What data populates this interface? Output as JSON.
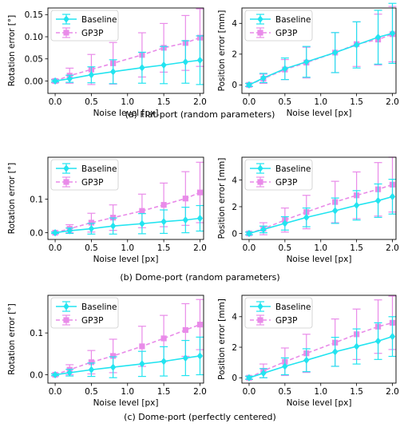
{
  "captions": [
    "(a) Flat-port (random parameters)",
    "(b) Dome-port (random parameters)",
    "(c) Dome-port (perfectly centered)"
  ],
  "colors": {
    "baseline": "#22e4f0",
    "gp3p": "#e98be9"
  },
  "chart_data": [
    {
      "id": "a-rotation",
      "type": "line",
      "row": "a",
      "col": "left",
      "xlabel": "Noise level [px]",
      "ylabel": "Rotation error [°]",
      "xlim": [
        -0.1,
        2.05
      ],
      "ylim": [
        -0.028,
        0.165
      ],
      "xticks": [
        0.0,
        0.5,
        1.0,
        1.5,
        2.0
      ],
      "xtick_labels": [
        "0.0",
        "0.5",
        "1.0",
        "1.5",
        "2.0"
      ],
      "yticks": [
        0.0,
        0.05,
        0.1,
        0.15
      ],
      "ytick_labels": [
        "0.00",
        "0.05",
        "0.10",
        "0.15"
      ],
      "legend": "top-left",
      "x": [
        0.0,
        0.2,
        0.5,
        0.8,
        1.2,
        1.5,
        1.8,
        2.0
      ],
      "series": [
        {
          "name": "Baseline",
          "marker": "diamond",
          "dash": "solid",
          "values": [
            0.0,
            0.005,
            0.014,
            0.021,
            0.03,
            0.036,
            0.043,
            0.047
          ],
          "errors": [
            0.002,
            0.008,
            0.018,
            0.027,
            0.035,
            0.042,
            0.048,
            0.055
          ]
        },
        {
          "name": "GP3P",
          "marker": "square",
          "dash": "dashed",
          "values": [
            0.0,
            0.012,
            0.026,
            0.04,
            0.059,
            0.075,
            0.086,
            0.098
          ],
          "errors": [
            0.004,
            0.017,
            0.034,
            0.047,
            0.05,
            0.055,
            0.062,
            0.065
          ]
        }
      ]
    },
    {
      "id": "a-position",
      "type": "line",
      "row": "a",
      "col": "right",
      "xlabel": "Noise level [px]",
      "ylabel": "Position error [mm]",
      "xlim": [
        -0.1,
        2.05
      ],
      "ylim": [
        -0.55,
        5.0
      ],
      "xticks": [
        0.0,
        0.5,
        1.0,
        1.5,
        2.0
      ],
      "xtick_labels": [
        "0.0",
        "0.5",
        "1.0",
        "1.5",
        "2.0"
      ],
      "yticks": [
        0,
        2,
        4
      ],
      "ytick_labels": [
        "0",
        "2",
        "4"
      ],
      "legend": "top-left",
      "x": [
        0.0,
        0.2,
        0.5,
        0.8,
        1.2,
        1.5,
        1.8,
        2.0
      ],
      "series": [
        {
          "name": "Baseline",
          "marker": "diamond",
          "dash": "solid",
          "values": [
            0.0,
            0.45,
            1.05,
            1.5,
            2.1,
            2.6,
            3.1,
            3.35
          ],
          "errors": [
            0.1,
            0.3,
            0.7,
            1.0,
            1.3,
            1.5,
            1.75,
            1.95
          ]
        },
        {
          "name": "GP3P",
          "marker": "square",
          "dash": "dashed",
          "values": [
            0.0,
            0.4,
            1.0,
            1.45,
            2.1,
            2.65,
            2.95,
            3.3
          ],
          "errors": [
            0.1,
            0.3,
            0.65,
            1.0,
            1.3,
            1.45,
            1.65,
            1.8
          ]
        }
      ]
    },
    {
      "id": "b-rotation",
      "type": "line",
      "row": "b",
      "col": "left",
      "xlabel": "Noise level [px]",
      "ylabel": "Rotation error [°]",
      "xlim": [
        -0.1,
        2.05
      ],
      "ylim": [
        -0.02,
        0.225
      ],
      "xticks": [
        0.0,
        0.5,
        1.0,
        1.5,
        2.0
      ],
      "xtick_labels": [
        "0.0",
        "0.5",
        "1.0",
        "1.5",
        "2.0"
      ],
      "yticks": [
        0.0,
        0.1
      ],
      "ytick_labels": [
        "0.0",
        "0.1"
      ],
      "legend": "top-left",
      "x": [
        0.0,
        0.2,
        0.5,
        0.8,
        1.2,
        1.5,
        1.8,
        2.0
      ],
      "series": [
        {
          "name": "Baseline",
          "marker": "diamond",
          "dash": "solid",
          "values": [
            0.0,
            0.006,
            0.012,
            0.02,
            0.027,
            0.033,
            0.038,
            0.043
          ],
          "errors": [
            0.002,
            0.008,
            0.016,
            0.024,
            0.03,
            0.035,
            0.038,
            0.038
          ]
        },
        {
          "name": "GP3P",
          "marker": "square",
          "dash": "dashed",
          "values": [
            0.0,
            0.012,
            0.03,
            0.045,
            0.065,
            0.083,
            0.102,
            0.12
          ],
          "errors": [
            0.003,
            0.012,
            0.028,
            0.038,
            0.05,
            0.065,
            0.08,
            0.09
          ]
        }
      ]
    },
    {
      "id": "b-position",
      "type": "line",
      "row": "b",
      "col": "right",
      "xlabel": "Noise level [px]",
      "ylabel": "Position error [mm]",
      "xlim": [
        -0.1,
        2.05
      ],
      "ylim": [
        -0.45,
        5.7
      ],
      "xticks": [
        0.0,
        0.5,
        1.0,
        1.5,
        2.0
      ],
      "xtick_labels": [
        "0.0",
        "0.5",
        "1.0",
        "1.5",
        "2.0"
      ],
      "yticks": [
        0,
        2,
        4
      ],
      "ytick_labels": [
        "0",
        "2",
        "4"
      ],
      "legend": "top-left",
      "x": [
        0.0,
        0.2,
        0.5,
        0.8,
        1.2,
        1.5,
        1.8,
        2.0
      ],
      "series": [
        {
          "name": "Baseline",
          "marker": "diamond",
          "dash": "solid",
          "values": [
            0.0,
            0.3,
            0.75,
            1.2,
            1.7,
            2.1,
            2.45,
            2.75
          ],
          "errors": [
            0.1,
            0.25,
            0.5,
            0.7,
            0.95,
            1.1,
            1.25,
            1.3
          ]
        },
        {
          "name": "GP3P",
          "marker": "square",
          "dash": "dashed",
          "values": [
            0.0,
            0.35,
            1.0,
            1.6,
            2.35,
            2.85,
            3.3,
            3.65
          ],
          "errors": [
            0.1,
            0.45,
            0.9,
            1.25,
            1.55,
            1.75,
            2.0,
            2.05
          ]
        }
      ]
    },
    {
      "id": "c-rotation",
      "type": "line",
      "row": "c",
      "col": "left",
      "xlabel": "Noise level [px]",
      "ylabel": "Rotation error [°]",
      "xlim": [
        -0.1,
        2.05
      ],
      "ylim": [
        -0.02,
        0.19
      ],
      "xticks": [
        0.0,
        0.5,
        1.0,
        1.5,
        2.0
      ],
      "xtick_labels": [
        "0.0",
        "0.5",
        "1.0",
        "1.5",
        "2.0"
      ],
      "yticks": [
        0.0,
        0.1
      ],
      "ytick_labels": [
        "0.0",
        "0.1"
      ],
      "legend": "top-left",
      "x": [
        0.0,
        0.2,
        0.5,
        0.8,
        1.2,
        1.5,
        1.8,
        2.0
      ],
      "series": [
        {
          "name": "Baseline",
          "marker": "diamond",
          "dash": "solid",
          "values": [
            0.0,
            0.005,
            0.012,
            0.018,
            0.026,
            0.032,
            0.04,
            0.045
          ],
          "errors": [
            0.002,
            0.008,
            0.016,
            0.025,
            0.03,
            0.035,
            0.042,
            0.045
          ]
        },
        {
          "name": "GP3P",
          "marker": "square",
          "dash": "dashed",
          "values": [
            0.0,
            0.012,
            0.03,
            0.045,
            0.068,
            0.087,
            0.107,
            0.12
          ],
          "errors": [
            0.003,
            0.012,
            0.028,
            0.04,
            0.048,
            0.055,
            0.063,
            0.06
          ]
        }
      ]
    },
    {
      "id": "c-position",
      "type": "line",
      "row": "c",
      "col": "right",
      "xlabel": "Noise level [px]",
      "ylabel": "Position error [mm]",
      "xlim": [
        -0.1,
        2.05
      ],
      "ylim": [
        -0.35,
        5.4
      ],
      "xticks": [
        0.0,
        0.5,
        1.0,
        1.5,
        2.0
      ],
      "xtick_labels": [
        "0.0",
        "0.5",
        "1.0",
        "1.5",
        "2.0"
      ],
      "yticks": [
        0,
        2,
        4
      ],
      "ytick_labels": [
        "0",
        "2",
        "4"
      ],
      "legend": "top-left",
      "x": [
        0.0,
        0.2,
        0.5,
        0.8,
        1.2,
        1.5,
        1.8,
        2.0
      ],
      "series": [
        {
          "name": "Baseline",
          "marker": "diamond",
          "dash": "solid",
          "values": [
            0.0,
            0.3,
            0.75,
            1.15,
            1.7,
            2.05,
            2.4,
            2.7
          ],
          "errors": [
            0.1,
            0.3,
            0.55,
            0.75,
            0.95,
            1.15,
            1.2,
            1.3
          ]
        },
        {
          "name": "GP3P",
          "marker": "square",
          "dash": "dashed",
          "values": [
            0.0,
            0.45,
            1.05,
            1.6,
            2.3,
            2.85,
            3.35,
            3.6
          ],
          "errors": [
            0.1,
            0.45,
            0.9,
            1.25,
            1.55,
            1.65,
            1.75,
            1.75
          ]
        }
      ]
    }
  ]
}
